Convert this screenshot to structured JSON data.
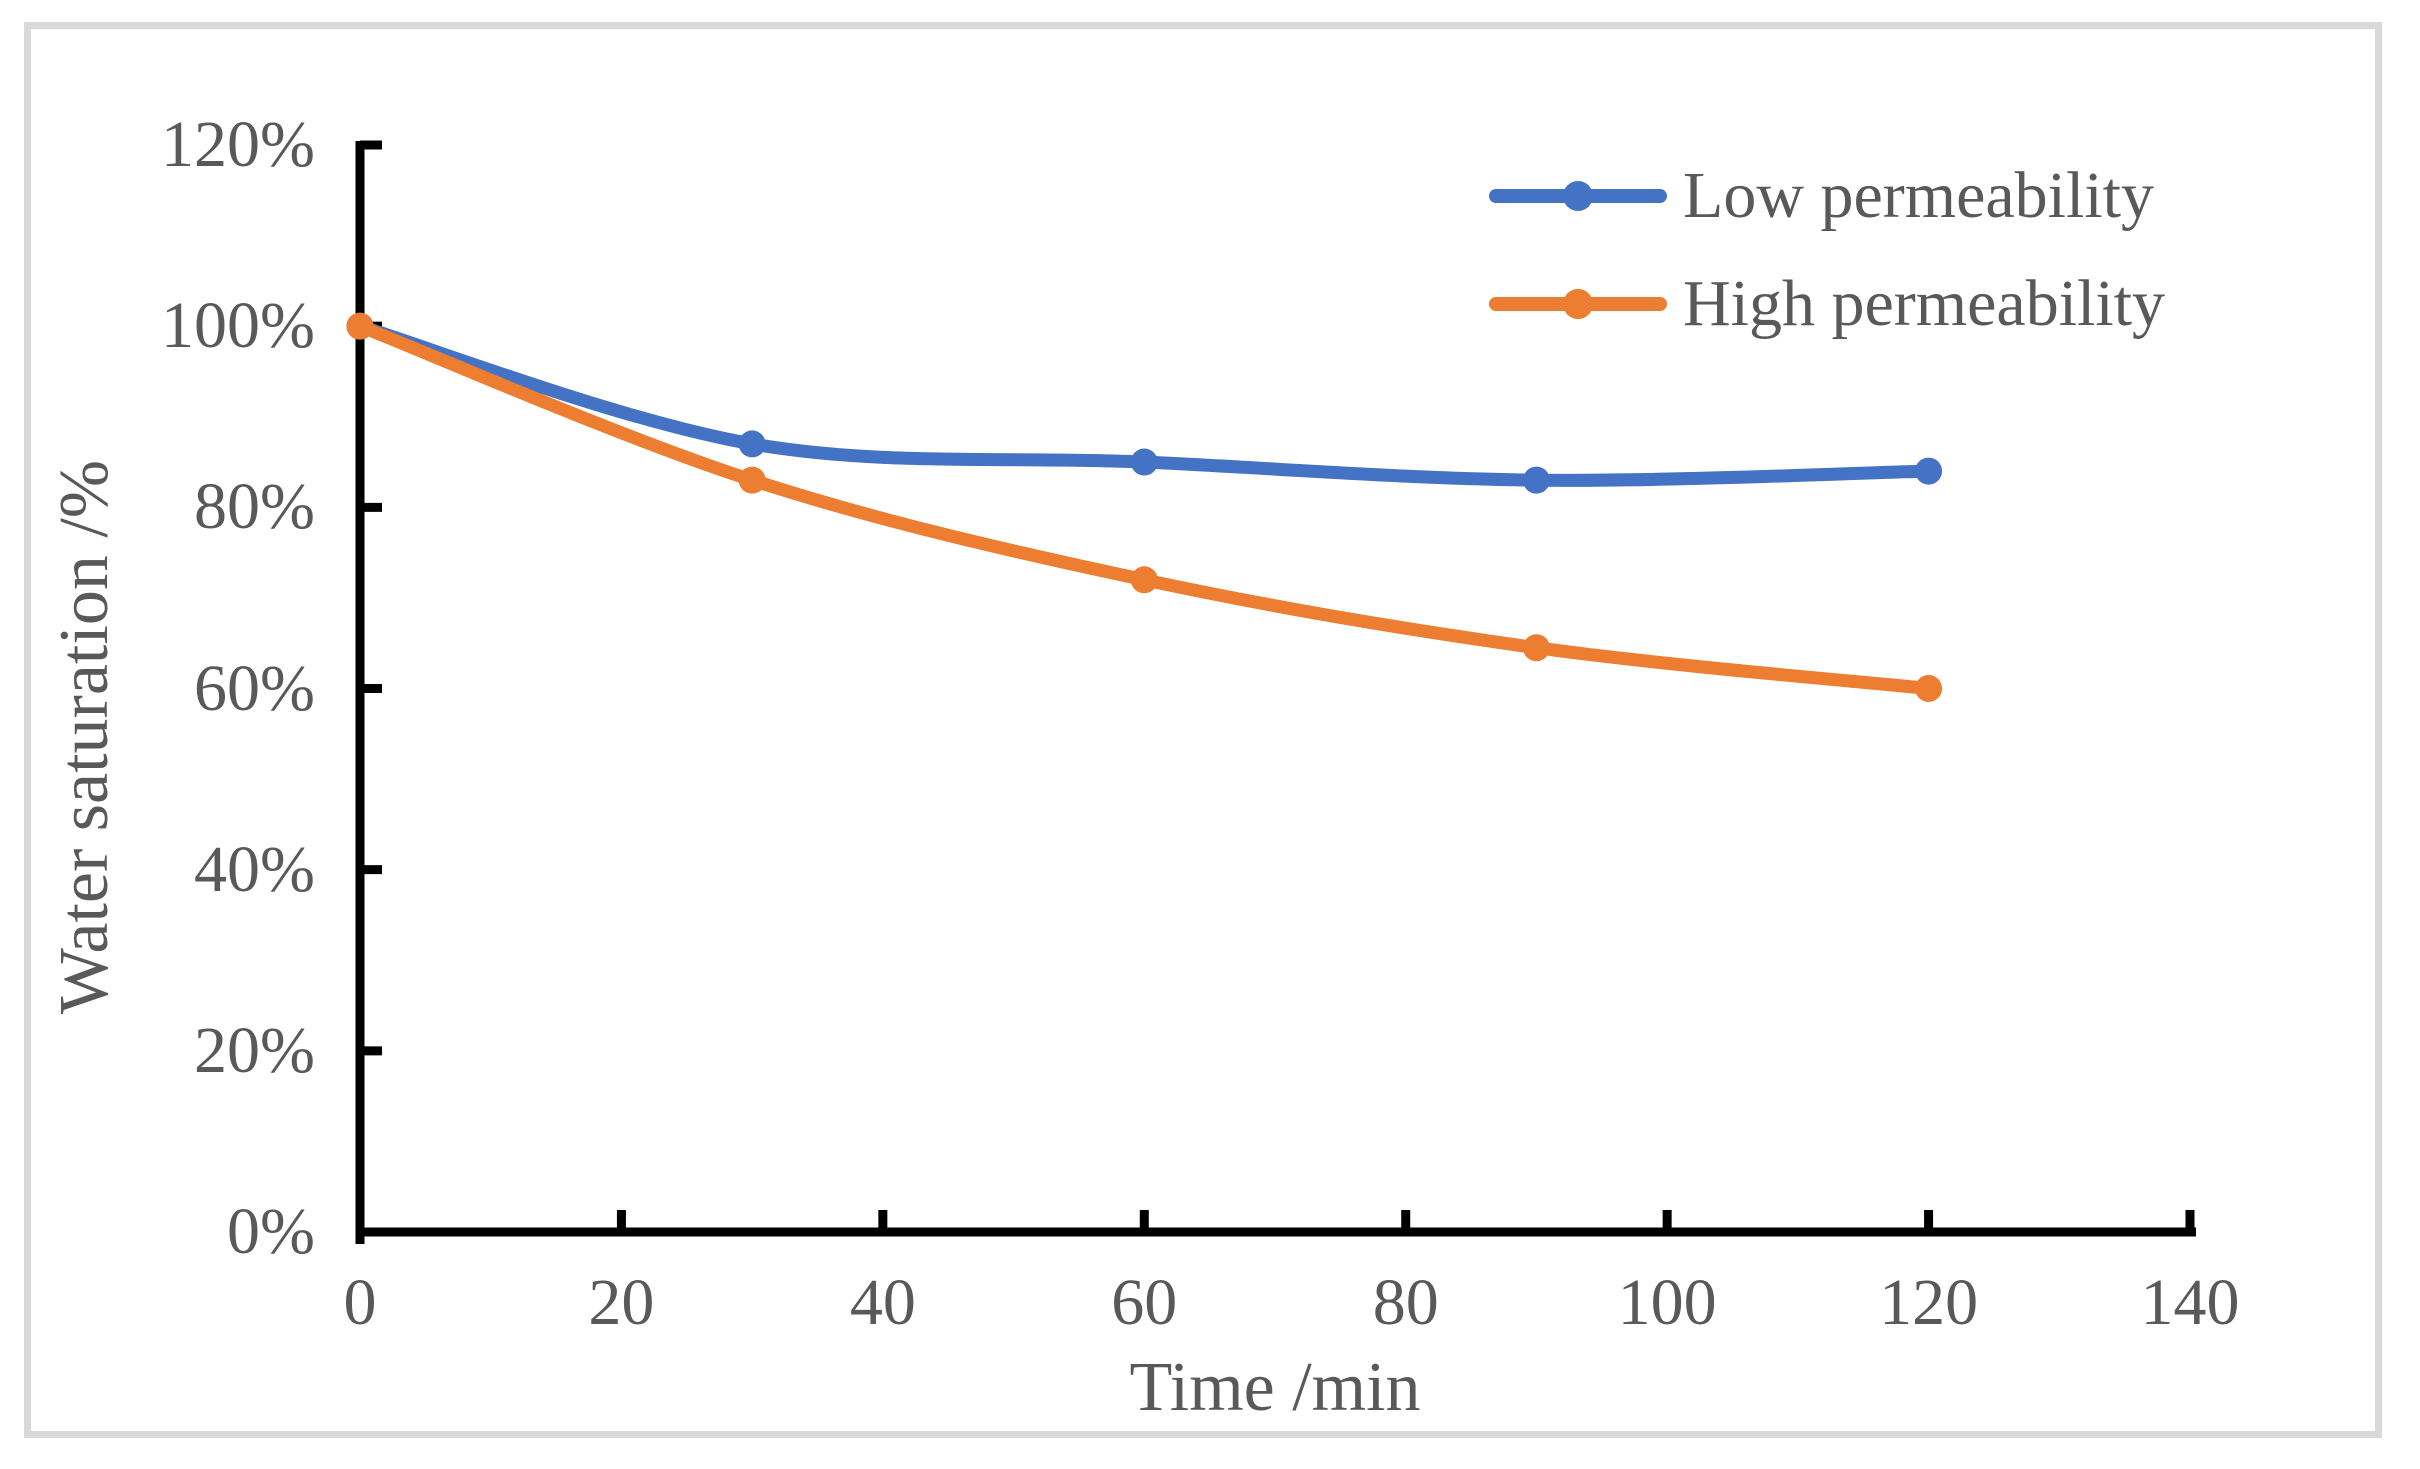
{
  "chart_data": {
    "type": "line",
    "title": "",
    "xlabel": "Time /min",
    "ylabel": "Water saturation /%",
    "x": [
      0,
      30,
      60,
      90,
      120
    ],
    "series": [
      {
        "name": "Low permeability",
        "color": "#4472C4",
        "values": [
          100,
          87,
          85,
          83,
          84
        ]
      },
      {
        "name": "High permeability",
        "color": "#ED7D31",
        "values": [
          100,
          83,
          72,
          64.5,
          60
        ]
      }
    ],
    "xlim": [
      0,
      140
    ],
    "ylim": [
      0,
      120
    ],
    "x_ticks": [
      0,
      20,
      40,
      60,
      80,
      100,
      120,
      140
    ],
    "y_tick_values": [
      0,
      20,
      40,
      60,
      80,
      100,
      120
    ],
    "y_tick_labels": [
      "0%",
      "20%",
      "40%",
      "60%",
      "80%",
      "100%",
      "120%"
    ],
    "grid": false,
    "smoothed": true,
    "marker": "circle",
    "legend_position": "top-right",
    "colors": {
      "text": "#595959",
      "axis": "#000000",
      "frame_border": "#D9D9D9",
      "background": "#FFFFFF"
    }
  }
}
